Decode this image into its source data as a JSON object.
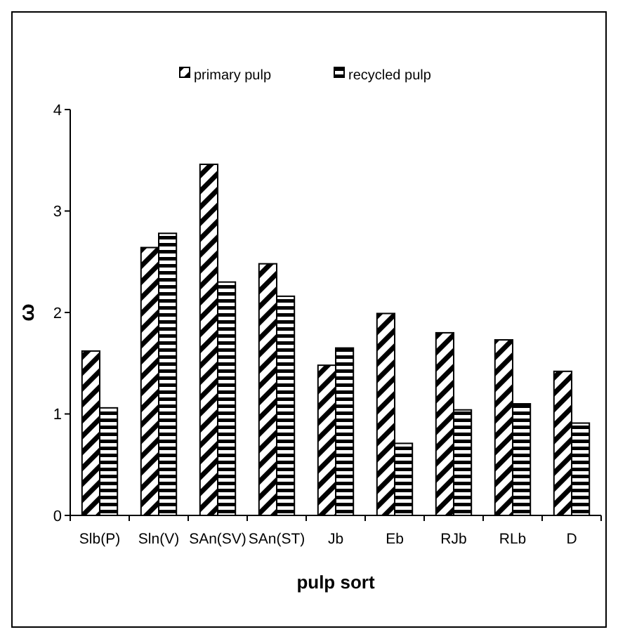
{
  "chart_data": {
    "type": "bar",
    "xlabel": "pulp sort",
    "ylabel": "ω",
    "categories": [
      "Slb(P)",
      "Sln(V)",
      "SAn(SV)",
      "SAn(ST)",
      "Jb",
      "Eb",
      "RJb",
      "RLb",
      "D"
    ],
    "series": [
      {
        "name": "primary pulp",
        "color": "#000000",
        "values": [
          1.62,
          2.64,
          3.46,
          2.48,
          1.48,
          1.99,
          1.8,
          1.73,
          1.42
        ]
      },
      {
        "name": "recycled pulp",
        "color": "#000000",
        "values": [
          1.06,
          2.78,
          2.3,
          2.16,
          1.65,
          0.71,
          1.04,
          1.1,
          0.91
        ]
      }
    ],
    "ylim": [
      0,
      4
    ],
    "yticks": [
      0,
      1,
      2,
      3,
      4
    ],
    "grid": false,
    "legend": "top"
  }
}
